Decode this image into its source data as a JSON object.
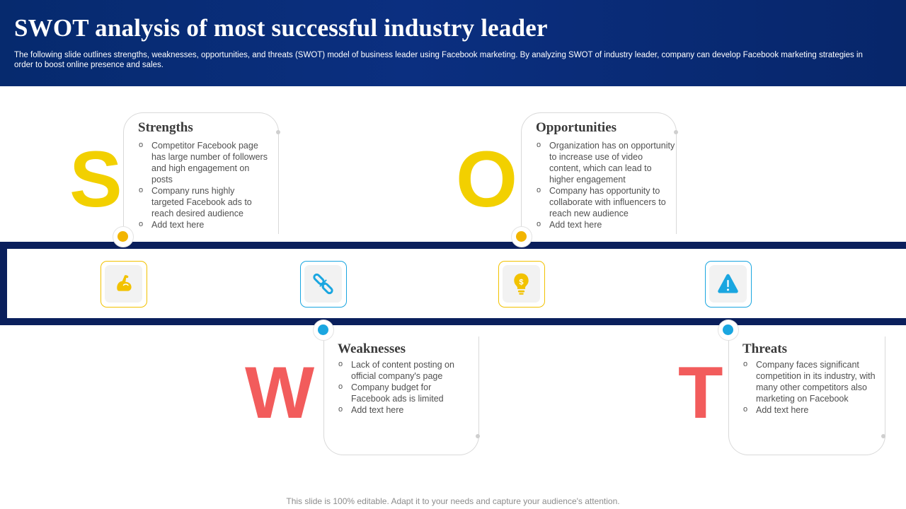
{
  "header": {
    "title": "SWOT analysis of most successful industry leader",
    "subtitle": "The following slide outlines strengths, weaknesses, opportunities, and threats (SWOT) model of business leader using Facebook marketing. By analyzing SWOT of industry leader, company can develop Facebook marketing strategies in order to boost online presence and sales."
  },
  "colors": {
    "header_bg": "#0b2f80",
    "band": "#0a1f5c",
    "yellow": "#f2c200",
    "blue": "#1aa6e0",
    "coral": "#f25c5c"
  },
  "strengths": {
    "letter": "S",
    "title": "Strengths",
    "icon": "flexed-arm-icon",
    "items": [
      "Competitor Facebook page has large number of followers and high engagement on posts",
      "Company runs highly targeted Facebook ads to reach desired audience",
      "Add text here"
    ]
  },
  "weaknesses": {
    "letter": "W",
    "title": "Weaknesses",
    "icon": "broken-link-icon",
    "items": [
      "Lack of content posting on official company's page",
      "Company budget for Facebook ads is limited",
      "Add text here"
    ]
  },
  "opportunities": {
    "letter": "O",
    "title": "Opportunities",
    "icon": "lightbulb-dollar-icon",
    "items": [
      "Organization has on opportunity to increase use of video content, which can lead to higher engagement",
      "Company has opportunity to collaborate with influencers to reach new audience",
      "Add text here"
    ]
  },
  "threats": {
    "letter": "T",
    "title": "Threats",
    "icon": "warning-triangle-icon",
    "items": [
      "Company faces significant competition in its industry, with many other competitors also marketing on Facebook",
      "Add text here"
    ]
  },
  "footer": "This slide is 100% editable. Adapt it to your needs and capture your audience's attention."
}
